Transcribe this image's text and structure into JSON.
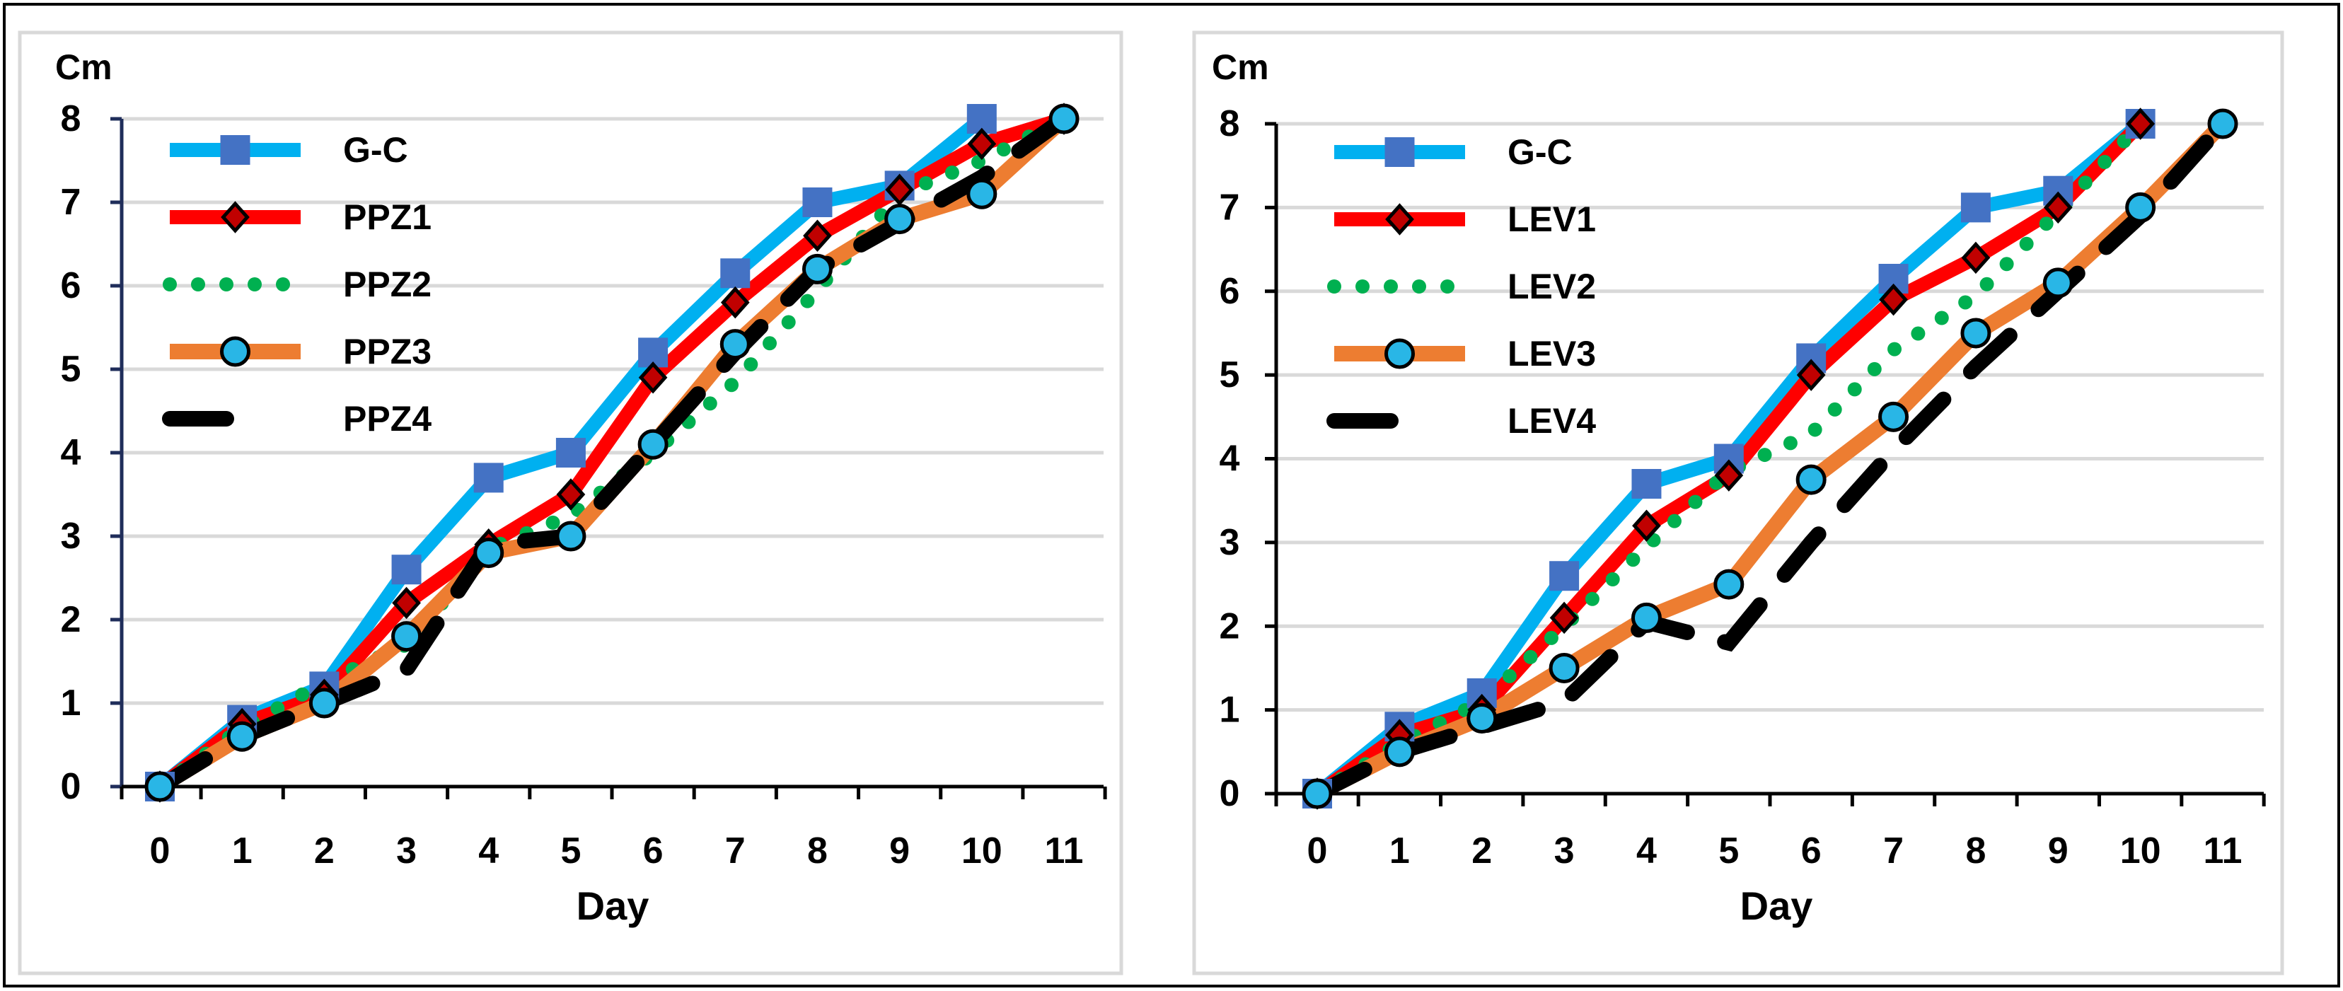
{
  "chart_data": [
    {
      "type": "line",
      "title": "",
      "ylabel": "Cm",
      "xlabel": "Day",
      "x": [
        0,
        1,
        2,
        3,
        4,
        5,
        6,
        7,
        8,
        9,
        10,
        11
      ],
      "xticks": [
        "0",
        "1",
        "2",
        "3",
        "4",
        "5",
        "6",
        "7",
        "8",
        "9",
        "10",
        "11"
      ],
      "yticks": [
        "0",
        "1",
        "2",
        "3",
        "4",
        "5",
        "6",
        "7",
        "8"
      ],
      "ylim": [
        0,
        8
      ],
      "xlim": [
        0,
        11
      ],
      "grid": "horizontal",
      "legend": "top-left",
      "series": [
        {
          "name": "G-C",
          "style": "gc",
          "color": "#00b0f0",
          "marker_color": "#4472c4",
          "values": [
            0,
            0.8,
            1.2,
            2.6,
            3.7,
            4.0,
            5.2,
            6.15,
            7.0,
            7.2,
            8.0,
            null
          ]
        },
        {
          "name": "PPZ1",
          "style": "red",
          "color": "#ff0000",
          "marker_color": "#c00000",
          "values": [
            0,
            0.75,
            1.1,
            2.2,
            2.9,
            3.5,
            4.9,
            5.8,
            6.6,
            7.15,
            7.7,
            8.0
          ]
        },
        {
          "name": "PPZ2",
          "style": "dotted",
          "color": "#00b050",
          "values": [
            0,
            0.7,
            1.25,
            1.7,
            2.85,
            3.25,
            4.0,
            4.85,
            5.95,
            7.1,
            7.5,
            8.0
          ]
        },
        {
          "name": "PPZ3",
          "style": "orange",
          "color": "#ed7d31",
          "marker_color": "#29b6e6",
          "values": [
            0,
            0.6,
            1.0,
            1.8,
            2.8,
            3.0,
            4.1,
            5.3,
            6.2,
            6.8,
            7.1,
            8.0
          ]
        },
        {
          "name": "PPZ4",
          "style": "dash",
          "color": "#000000",
          "values": [
            0,
            0.6,
            1.0,
            1.4,
            2.9,
            3.0,
            4.1,
            5.2,
            6.2,
            6.75,
            7.3,
            8.0
          ]
        }
      ]
    },
    {
      "type": "line",
      "title": "",
      "ylabel": "Cm",
      "xlabel": "Day",
      "x": [
        0,
        1,
        2,
        3,
        4,
        5,
        6,
        7,
        8,
        9,
        10,
        11
      ],
      "xticks": [
        "0",
        "1",
        "2",
        "3",
        "4",
        "5",
        "6",
        "7",
        "8",
        "9",
        "10",
        "11"
      ],
      "yticks": [
        "0",
        "1",
        "2",
        "3",
        "4",
        "5",
        "6",
        "7",
        "8"
      ],
      "ylim": [
        0,
        8
      ],
      "xlim": [
        0,
        11
      ],
      "grid": "horizontal",
      "legend": "top-left",
      "series": [
        {
          "name": "G-C",
          "style": "gc",
          "color": "#00b0f0",
          "marker_color": "#4472c4",
          "values": [
            0,
            0.8,
            1.2,
            2.6,
            3.7,
            4.0,
            5.2,
            6.15,
            7.0,
            7.2,
            8.0,
            null
          ]
        },
        {
          "name": "LEV1",
          "style": "red",
          "color": "#ff0000",
          "marker_color": "#c00000",
          "values": [
            0,
            0.7,
            1.0,
            2.1,
            3.2,
            3.8,
            5.0,
            5.9,
            6.4,
            7.0,
            8.0,
            null
          ]
        },
        {
          "name": "LEV2",
          "style": "dotted",
          "color": "#00b050",
          "values": [
            0,
            0.6,
            1.1,
            2.0,
            2.95,
            3.85,
            4.3,
            5.3,
            5.95,
            6.95,
            8.0,
            null
          ]
        },
        {
          "name": "LEV3",
          "style": "orange",
          "color": "#ed7d31",
          "marker_color": "#29b6e6",
          "values": [
            0,
            0.5,
            0.9,
            1.5,
            2.1,
            2.5,
            3.75,
            4.5,
            5.5,
            6.1,
            7.0,
            8.0
          ]
        },
        {
          "name": "LEV4",
          "style": "dash",
          "color": "#000000",
          "values": [
            0,
            0.5,
            0.8,
            1.1,
            2.05,
            1.8,
            3.0,
            4.1,
            5.1,
            6.0,
            6.9,
            8.0
          ]
        }
      ]
    }
  ]
}
